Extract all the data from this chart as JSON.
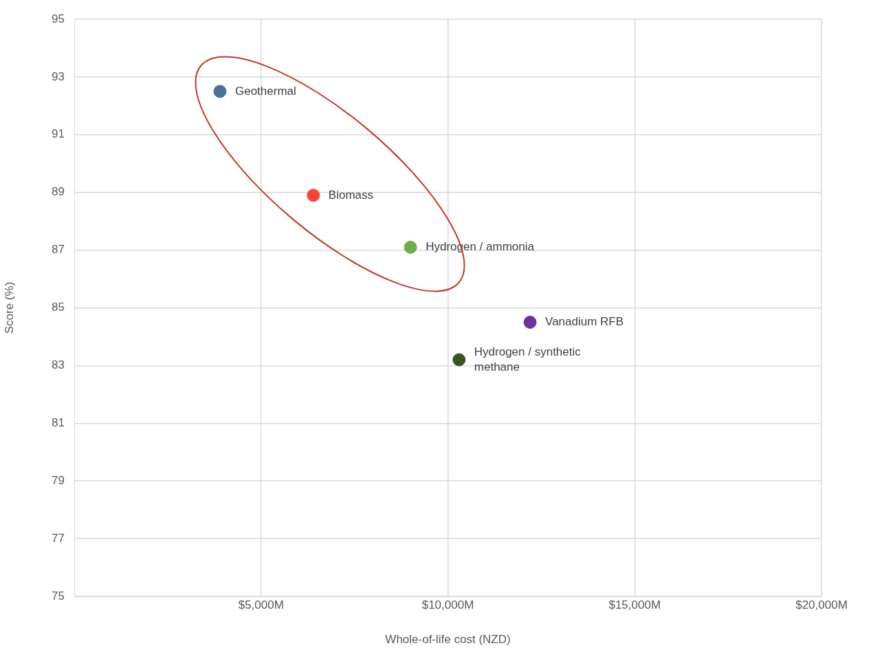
{
  "chart_data": {
    "type": "scatter",
    "xlabel": "Whole-of-life cost (NZD)",
    "ylabel": "Score (%)",
    "xlim": [
      0,
      20000
    ],
    "xticks": [
      {
        "value": 5000,
        "label": "$5,000M"
      },
      {
        "value": 10000,
        "label": "$10,000M"
      },
      {
        "value": 15000,
        "label": "$15,000M"
      },
      {
        "value": 20000,
        "label": "$20,000M"
      }
    ],
    "ylim": [
      75,
      95
    ],
    "yticks": [
      75,
      77,
      79,
      81,
      83,
      85,
      87,
      89,
      91,
      93,
      95
    ],
    "grid": true,
    "legend": false,
    "marker": "circle",
    "series": [
      {
        "name": "Geothermal",
        "color": "#4a7097",
        "x": [
          3900
        ],
        "values": [
          92.5
        ]
      },
      {
        "name": "Biomass",
        "color": "#ff4136",
        "x": [
          6400
        ],
        "values": [
          88.9
        ]
      },
      {
        "name": "Hydrogen / ammonia",
        "color": "#70ad47",
        "x": [
          9000
        ],
        "values": [
          87.1
        ]
      },
      {
        "name": "Vanadium RFB",
        "color": "#7030a0",
        "x": [
          12200
        ],
        "values": [
          84.5
        ]
      },
      {
        "name": "Hydrogen / synthetic methane",
        "color": "#375623",
        "x": [
          10300
        ],
        "values": [
          83.2
        ]
      }
    ]
  }
}
